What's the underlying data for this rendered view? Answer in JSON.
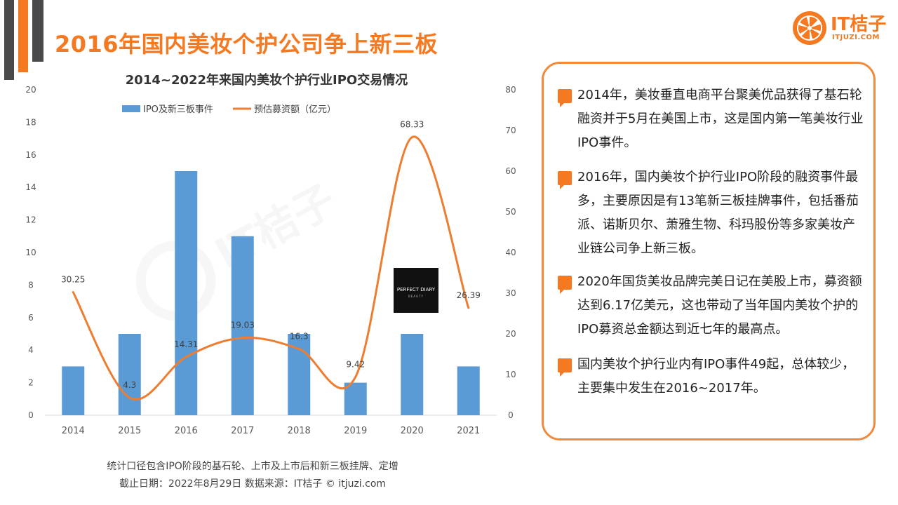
{
  "page": {
    "title": "2016年国内美妆个护公司争上新三板"
  },
  "logo": {
    "brand": "IT桔子",
    "url": "ITJUZI.COM"
  },
  "colors": {
    "accent": "#f47920",
    "dark": "#4a4a4a",
    "bar": "#5b9bd5",
    "line": "#ed7d31"
  },
  "chart_data": {
    "type": "bar",
    "title": "2014~2022年来国内美妆个护行业IPO交易情况",
    "categories": [
      "2014",
      "2015",
      "2016",
      "2017",
      "2018",
      "2019",
      "2020",
      "2021"
    ],
    "series": [
      {
        "name": "IPO及新三板事件",
        "type": "bar",
        "axis": "left",
        "values": [
          3,
          5,
          15,
          11,
          5,
          2,
          5,
          3
        ]
      },
      {
        "name": "预估募资额（亿元）",
        "type": "line",
        "axis": "right",
        "smooth": true,
        "values": [
          30.25,
          4.3,
          14.31,
          19.03,
          16.3,
          9.42,
          68.33,
          26.39
        ]
      }
    ],
    "line_labels": [
      "30.25",
      "4.3",
      "14.31",
      "19.03",
      "16.3",
      "9.42",
      "68.33",
      "26.39"
    ],
    "ylim_left": [
      0,
      20
    ],
    "yticks_left": [
      "0",
      "2",
      "4",
      "6",
      "8",
      "10",
      "12",
      "14",
      "16",
      "18",
      "20"
    ],
    "ylim_right": [
      0,
      80
    ],
    "yticks_right": [
      "0",
      "10",
      "20",
      "30",
      "40",
      "50",
      "60",
      "70",
      "80"
    ],
    "legend_position": "top",
    "grid": false
  },
  "badge": {
    "line1": "PERFECT DIARY",
    "line2": "BEAUTY"
  },
  "notes": {
    "scope": "统计口径包含IPO阶段的基石轮、上市及上市后和新三板挂牌、定增",
    "source": "截止日期：2022年8月29日    数据来源：IT桔子 © itjuzi.com"
  },
  "points": [
    "2014年，美妆垂直电商平台聚美优品获得了基石轮融资并于5月在美国上市，这是国内第一笔美妆行业IPO事件。",
    "2016年，国内美妆个护行业IPO阶段的融资事件最多，主要原因是有13笔新三板挂牌事件，包括番茄派、诺斯贝尔、萧雅生物、科玛股份等多家美妆产业链公司争上新三板。",
    "2020年国货美妆品牌完美日记在美股上市，募资额达到6.17亿美元，这也带动了当年国内美妆个护的IPO募资总金额达到近七年的最高点。",
    "国内美妆个护行业内有IPO事件49起，总体较少，主要集中发生在2016~2017年。"
  ]
}
